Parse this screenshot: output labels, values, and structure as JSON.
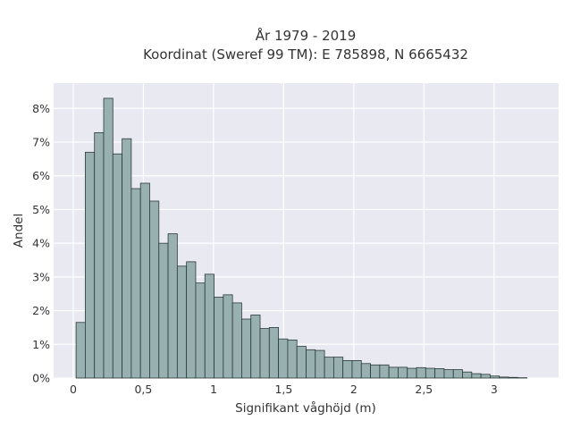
{
  "chart_data": {
    "type": "bar",
    "title": "År 1979 - 2019",
    "subtitle": "Koordinat (Sweref 99 TM): E 785898, N 6665432",
    "xlabel": "Signifikant våghöjd (m)",
    "ylabel": "Andel",
    "x_ticks": [
      {
        "value": 0,
        "label": "0"
      },
      {
        "value": 0.5,
        "label": "0,5"
      },
      {
        "value": 1,
        "label": "1"
      },
      {
        "value": 1.5,
        "label": "1,5"
      },
      {
        "value": 2,
        "label": "2"
      },
      {
        "value": 2.5,
        "label": "2,5"
      },
      {
        "value": 3,
        "label": "3"
      }
    ],
    "y_ticks": [
      {
        "value": 0,
        "label": "0%"
      },
      {
        "value": 1,
        "label": "1%"
      },
      {
        "value": 2,
        "label": "2%"
      },
      {
        "value": 3,
        "label": "3%"
      },
      {
        "value": 4,
        "label": "4%"
      },
      {
        "value": 5,
        "label": "5%"
      },
      {
        "value": 6,
        "label": "6%"
      },
      {
        "value": 7,
        "label": "7%"
      },
      {
        "value": 8,
        "label": "8%"
      }
    ],
    "xlim": [
      -0.14,
      3.46
    ],
    "ylim": [
      0,
      8.75
    ],
    "bin_start": 0.02,
    "bin_width": 0.0656,
    "values": [
      1.65,
      6.7,
      7.28,
      8.3,
      6.65,
      7.1,
      5.62,
      5.78,
      5.25,
      4.0,
      4.28,
      3.32,
      3.45,
      2.82,
      3.08,
      2.4,
      2.47,
      2.23,
      1.75,
      1.87,
      1.47,
      1.5,
      1.16,
      1.13,
      0.94,
      0.84,
      0.82,
      0.62,
      0.62,
      0.52,
      0.52,
      0.43,
      0.39,
      0.39,
      0.32,
      0.32,
      0.29,
      0.31,
      0.29,
      0.28,
      0.25,
      0.25,
      0.18,
      0.13,
      0.11,
      0.06,
      0.03,
      0.02,
      0.01
    ],
    "grid": true,
    "colors": {
      "bar_fill": "#98b0b0",
      "bar_edge": "#2b3a3a",
      "plot_background": "#e9e9f1",
      "grid": "#ffffff"
    }
  }
}
